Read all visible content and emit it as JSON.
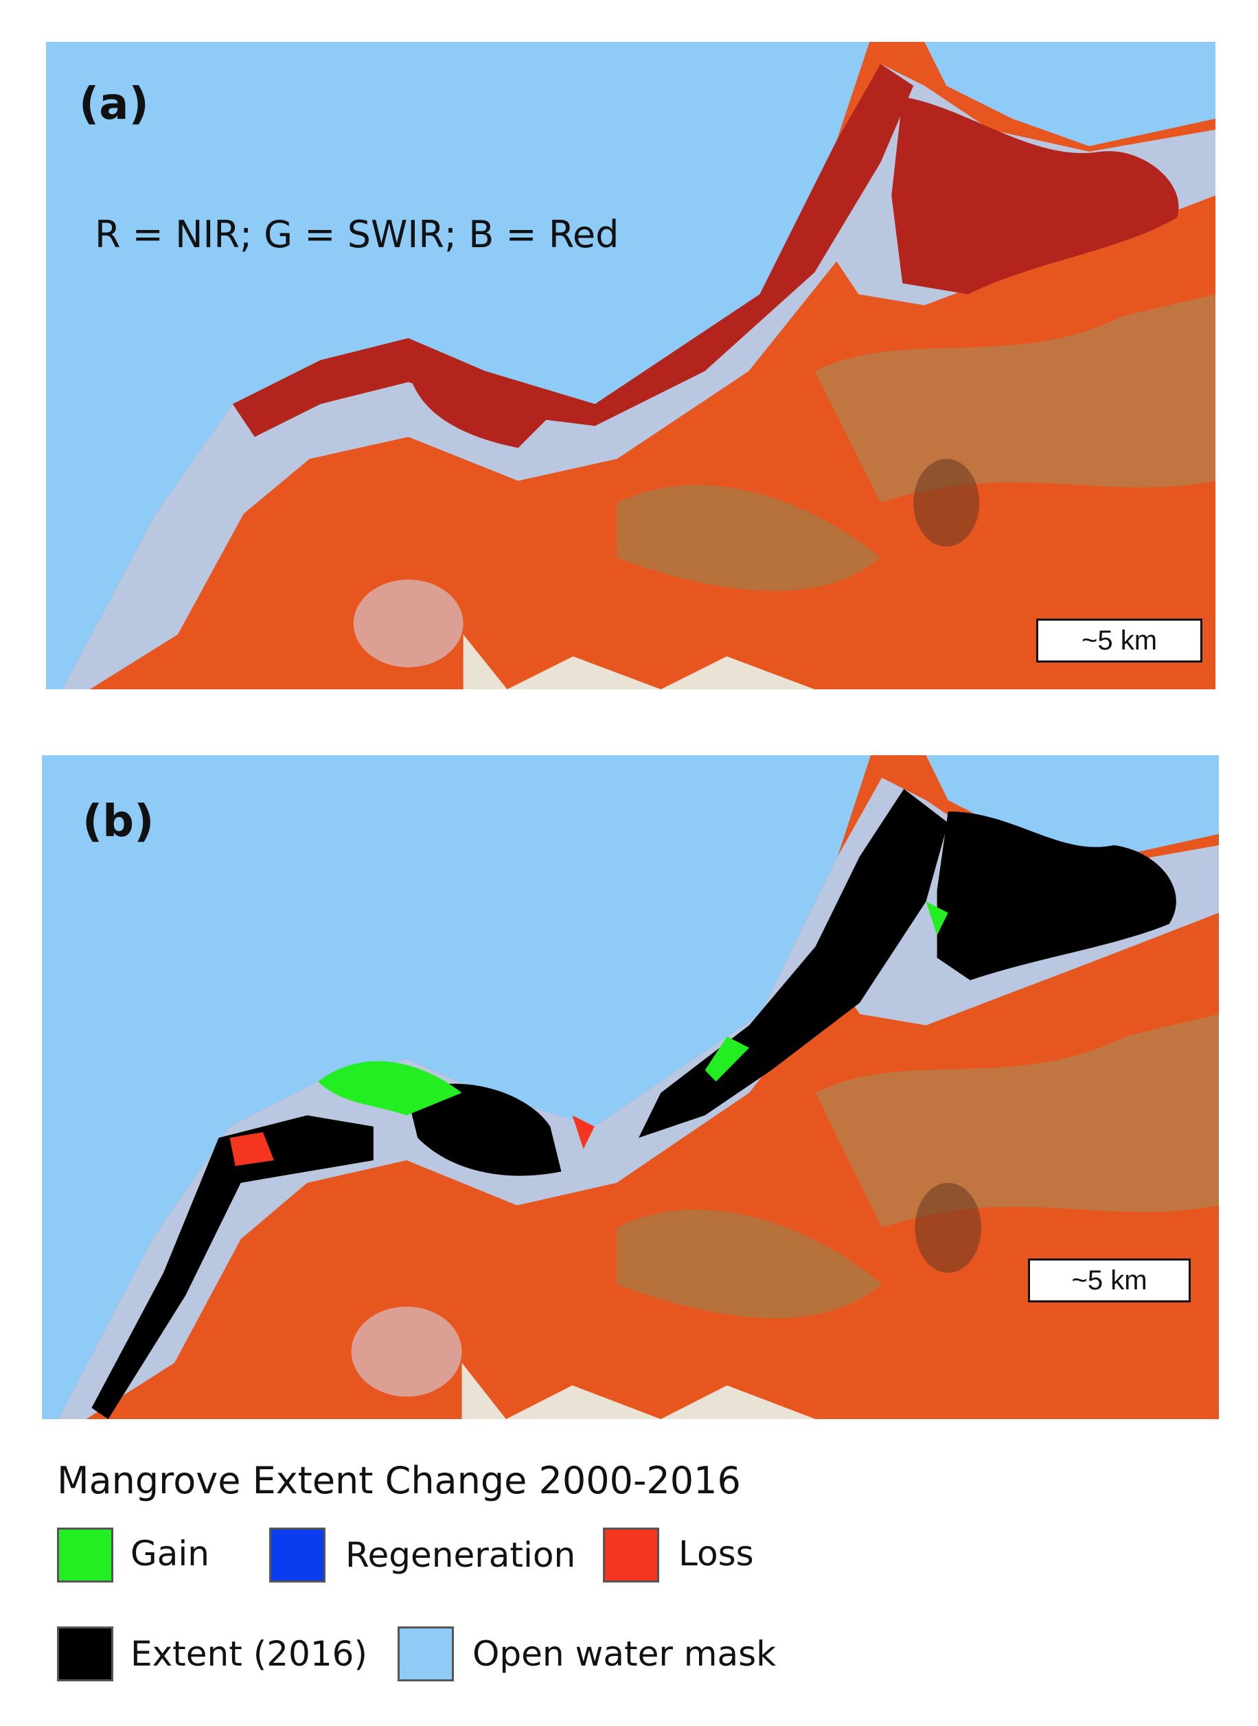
{
  "panels": [
    {
      "label": "(a)",
      "band_text": "R = NIR; G = SWIR; B = Red",
      "scale_bar": "~5 km"
    },
    {
      "label": "(b)",
      "scale_bar": "~5 km"
    }
  ],
  "legend": {
    "title": "Mangrove Extent Change 2000-2016",
    "items": [
      {
        "label": "Gain",
        "color": "#22ee22"
      },
      {
        "label": "Regeneration",
        "color": "#0a3cf0"
      },
      {
        "label": "Loss",
        "color": "#f5351f"
      },
      {
        "label": "Extent (2016)",
        "color": "#000000"
      },
      {
        "label": "Open water mask",
        "color": "#8ecbf7"
      }
    ]
  }
}
